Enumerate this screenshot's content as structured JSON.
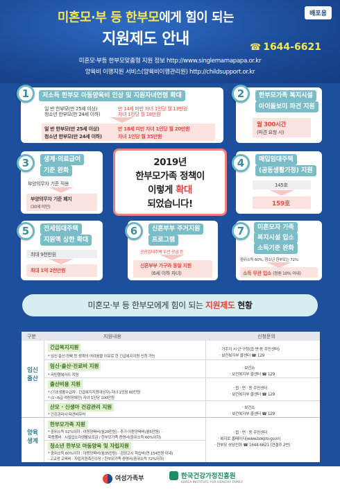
{
  "header": {
    "badge": "배포용",
    "title_part1": "미혼모·부 등 한부모",
    "title_part2": "에게 힘이 되는",
    "title_line2": "지원제도 안내",
    "phone": "1644-6621",
    "url_line1": "미혼모·부등 한부모맞춤형 지원 정보 http://www.singlemamapapa.or.kr",
    "url_line2": "양육비 이행지원 서비스(양육비이행관리원) http://childsupport.or.kr"
  },
  "cards": {
    "c1": {
      "num": "1",
      "title": "저소득 한부모 아동양육비 인상 및 지원자녀연령 확대",
      "row1_a": "일   반 한부모(만 25세 이상)",
      "row1_b": "만 14세 미만 자녀 1인당 월 13만원",
      "row2_a": "청소년 한부모(만 24세 이하)",
      "row2_b": "자녀 1인당 월 18만원",
      "row3_a": "일   반 한부모(만 25세 이상)",
      "row3_b": "만 18세 미만 자녀 1인당 월 20만원",
      "row4_a": "청소년 한부모(만 24세 이하)",
      "row4_b": "자녀 1인당 월 35만원"
    },
    "c2": {
      "num": "2",
      "title_line1": "한부모가족 복지시설",
      "title_line2": "아이돌보미 파견 지원",
      "value": "월 300시간",
      "sub": "(파견 요청 시)"
    },
    "c3": {
      "num": "3",
      "title_line1": "생계·의료급여",
      "title_line2": "기준 완화",
      "before": "부양의무자 기준 적용",
      "after": "부양의무자 기준 폐지",
      "after_sub": "(30세 미만)"
    },
    "c4": {
      "num": "4",
      "title_line1": "매입임대주택",
      "title_line2": "(공동생활가정) 지원",
      "before": "145호",
      "after": "159호"
    },
    "c5": {
      "num": "5",
      "title_line1": "전세임대주택",
      "title_line2": "지원액 상한 확대",
      "before": "최대 9천만원",
      "after": "최대 1억 2천만원"
    },
    "c6": {
      "num": "6",
      "title_line1": "신혼부부 주거지원",
      "title_line2": "프로그램",
      "before": "공공임대주택 우선 공급 등",
      "after": "신혼부부 가구와 동일 지원",
      "after_sub": "(6세 이하 자녀)"
    },
    "c7": {
      "num": "7",
      "title_line1": "미혼모자 가족",
      "title_line2": "복지시설 입소",
      "title_line3": "소득기준 완화",
      "before": "중위소득 60%, 청소년 한부모는 72%",
      "after": "소득 무관 입소",
      "after_sub": "(정원 10% 이내)"
    }
  },
  "center": {
    "line1": "2019년",
    "line2": "한부모가족 정책이",
    "line3_a": "이렇게 ",
    "line3_b": "확대",
    "line4": "되었습니다!"
  },
  "status": {
    "prefix": "미혼모·부 등 한부모에게 힘이 되는 ",
    "highlight": "지원제도",
    "suffix": " 현황"
  },
  "table": {
    "head_cat": "구분",
    "head_content": "지원내용",
    "head_contact": "신청문의",
    "cat1_line1": "임신",
    "cat1_line2": "출산",
    "cat2_line1": "양육",
    "cat2_line2": "생계",
    "rows": [
      {
        "title": "긴급복지지원",
        "desc": "* 임신·출산·양육 등 생계의 어려움을 이유로 한 긴급복지지원 신청 가능",
        "contact1": "· 거주지 시·군·구청(읍·면·동 주민센터)",
        "contact2": "· 보건복지부 콜센터 ☎ 129"
      },
      {
        "title": "임신·출산·진료비 지원",
        "desc": "* 국민행복카드 지원",
        "contact1": "· 보건소",
        "contact2": "· 보건복지부 콜센터 ☎ 129"
      },
      {
        "title": "출산비용 지원",
        "desc": "* (기초생활수급자 · 긴급복지지원대상자) 자녀 1인당 60만원",
        "desc2": "* (1~6급 여성장애인) 자녀 1인당 100만원",
        "contact1": "· 읍 · 면 · 동 주민센터",
        "contact2": "· 보건복지부 콜센터 ☎ 129"
      },
      {
        "title": "산모 · 신생아 건강관리 지원",
        "desc": "* 건강관리사 파견바우처",
        "contact1": "· 보건소",
        "contact2": "· 보건복지부 콜센터 ☎ 129"
      },
      {
        "title": "한부모가족 지원",
        "desc": "* 중위소득 52%이하 : 아동양육비(월20만원) · 추가 아동양육비(월5만원) ·",
        "desc2": "  학용품비 · 시설입소자생활보조금 / 한부모가족 증명서(중위소득 60%이하)",
        "contact1": "· 읍 · 면 · 동 주민센터",
        "contact2": "· 복지로 홈페이지(www.bokjiro.go.kr)",
        "contact3": "· 한부모 상담전화 ☎ 1644-6621 (연결후 2번)"
      },
      {
        "title": "청소년 한부모 아동양육 및 자립지원",
        "desc": "* 중위소득 60%이하 : 아동양육비(월35만원) · 검정고시 학습비(연 154만원 이내)",
        "desc2": "  · 고교생 교육비 · 자립지원촉진수당 / 한부모가족 증명서(중위소득 72%이하)",
        "contact1": "",
        "contact2": ""
      }
    ]
  },
  "footer": {
    "logo1": "여성가족부",
    "logo2": "한국건강가정진흥원",
    "logo2_sub": "KOREA INSTITUTE FOR HEALTHY FAMILY"
  }
}
